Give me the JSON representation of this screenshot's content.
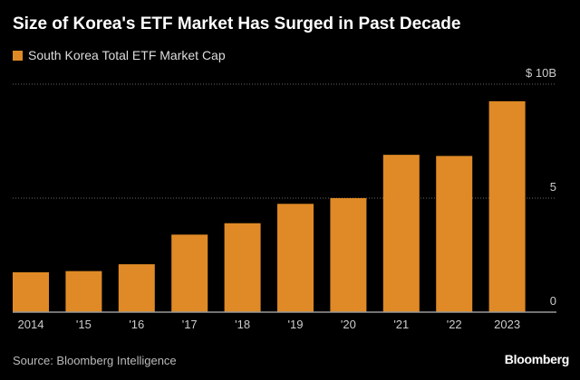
{
  "title": "Size of Korea's ETF Market Has Surged in Past Decade",
  "source": "Source: Bloomberg Intelligence",
  "brand": "Bloomberg",
  "colors": {
    "bar": "#df8a26",
    "background": "#000000",
    "grid": "#666666"
  },
  "chart_data": {
    "type": "bar",
    "categories": [
      "2014",
      "'15",
      "'16",
      "'17",
      "'18",
      "'19",
      "'20",
      "'21",
      "'22",
      "2023"
    ],
    "series": [
      {
        "name": "South Korea Total ETF Market Cap",
        "values": [
          1.75,
          1.8,
          2.1,
          3.4,
          3.9,
          4.75,
          5.0,
          6.9,
          6.85,
          9.25
        ]
      }
    ],
    "yticks": [
      {
        "value": 0,
        "label": "0"
      },
      {
        "value": 5,
        "label": "5"
      },
      {
        "value": 10,
        "label": "$ 10B"
      }
    ],
    "ylim": [
      0,
      10
    ],
    "grid": true,
    "yaxis_position": "right",
    "legend_position": "top-left"
  }
}
